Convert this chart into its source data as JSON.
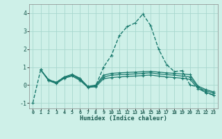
{
  "xlabel": "Humidex (Indice chaleur)",
  "xlim": [
    -0.5,
    23.5
  ],
  "ylim": [
    -1.3,
    4.5
  ],
  "xticks": [
    0,
    1,
    2,
    3,
    4,
    5,
    6,
    7,
    8,
    9,
    10,
    11,
    12,
    13,
    14,
    15,
    16,
    17,
    18,
    19,
    20,
    21,
    22,
    23
  ],
  "yticks": [
    -1,
    0,
    1,
    2,
    3,
    4
  ],
  "bg_color": "#cef0e8",
  "line_color": "#1a7a6e",
  "grid_color": "#a8d8ce",
  "series": [
    {
      "x": [
        0,
        1,
        2,
        3,
        4,
        5,
        6,
        7,
        8,
        9,
        10,
        11,
        12,
        13,
        14,
        15,
        16,
        17,
        18,
        19,
        20,
        21,
        22,
        23
      ],
      "y": [
        -1.0,
        0.85,
        0.3,
        0.15,
        0.45,
        0.55,
        0.35,
        -0.1,
        -0.05,
        1.0,
        1.65,
        2.75,
        3.25,
        3.45,
        3.95,
        3.3,
        2.0,
        1.15,
        0.75,
        0.8,
        0.0,
        -0.1,
        -0.45,
        -0.55
      ],
      "lw": 1.0,
      "ls": "--"
    },
    {
      "x": [
        1,
        2,
        3,
        4,
        5,
        6,
        7,
        8,
        9,
        10,
        11,
        12,
        13,
        14,
        15,
        16,
        17,
        18,
        19,
        20,
        21,
        22,
        23
      ],
      "y": [
        0.85,
        0.3,
        0.15,
        0.45,
        0.6,
        0.38,
        -0.08,
        0.0,
        0.55,
        0.65,
        0.68,
        0.7,
        0.72,
        0.74,
        0.76,
        0.72,
        0.68,
        0.65,
        0.62,
        0.58,
        -0.05,
        -0.25,
        -0.38
      ],
      "lw": 0.9,
      "ls": "-"
    },
    {
      "x": [
        1,
        2,
        3,
        4,
        5,
        6,
        7,
        8,
        9,
        10,
        11,
        12,
        13,
        14,
        15,
        16,
        17,
        18,
        19,
        20,
        21,
        22,
        23
      ],
      "y": [
        0.85,
        0.28,
        0.12,
        0.42,
        0.55,
        0.32,
        -0.1,
        -0.05,
        0.45,
        0.55,
        0.58,
        0.6,
        0.62,
        0.65,
        0.68,
        0.62,
        0.58,
        0.55,
        0.5,
        0.45,
        -0.12,
        -0.32,
        -0.45
      ],
      "lw": 0.9,
      "ls": "-"
    },
    {
      "x": [
        1,
        2,
        3,
        4,
        5,
        6,
        7,
        8,
        9,
        10,
        11,
        12,
        13,
        14,
        15,
        16,
        17,
        18,
        19,
        20,
        21,
        22,
        23
      ],
      "y": [
        0.85,
        0.25,
        0.08,
        0.38,
        0.5,
        0.26,
        -0.13,
        -0.1,
        0.35,
        0.42,
        0.45,
        0.48,
        0.5,
        0.53,
        0.56,
        0.5,
        0.45,
        0.42,
        0.38,
        0.32,
        -0.2,
        -0.4,
        -0.55
      ],
      "lw": 0.9,
      "ls": "-"
    }
  ]
}
